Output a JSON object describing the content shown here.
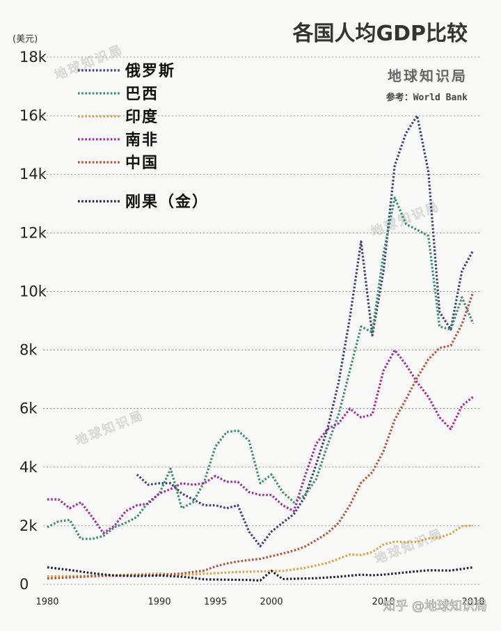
{
  "title": "各国人均GDP比较",
  "unit_label": "(美元)",
  "brand": "地球知识局",
  "source": "参考：World Bank",
  "watermark_text": "地球知识局",
  "zhihu_watermark": "知乎 @地球知识局",
  "chart_data": {
    "type": "line",
    "title": "各国人均GDP比较",
    "ylabel": "(美元)",
    "xlim": [
      1980,
      2018
    ],
    "ylim": [
      0,
      18000
    ],
    "y_ticks": [
      0,
      2000,
      4000,
      6000,
      8000,
      10000,
      12000,
      14000,
      16000,
      18000
    ],
    "y_tick_labels": [
      "0",
      "2k",
      "4k",
      "6k",
      "8k",
      "10k",
      "12k",
      "14k",
      "16k",
      "18k"
    ],
    "x_ticks": [
      1980,
      1990,
      1995,
      2000,
      2010,
      2018
    ],
    "x_tick_labels": [
      "1980",
      "1990",
      "1995",
      "2000",
      "2010",
      "2018"
    ],
    "grid": "horizontal",
    "line_style": "dotted",
    "legend_position": "top-left",
    "series": [
      {
        "name": "俄罗斯",
        "color": "#3b3f7a",
        "x": [
          1988,
          1989,
          1990,
          1991,
          1992,
          1993,
          1994,
          1995,
          1996,
          1997,
          1998,
          1999,
          2000,
          2001,
          2002,
          2003,
          2004,
          2005,
          2006,
          2007,
          2008,
          2009,
          2010,
          2011,
          2012,
          2013,
          2014,
          2015,
          2016,
          2017,
          2018
        ],
        "values": [
          3750,
          3400,
          3450,
          3450,
          3100,
          2900,
          2700,
          2700,
          2600,
          2700,
          1800,
          1300,
          1800,
          2100,
          2400,
          3000,
          4100,
          5300,
          6900,
          9100,
          11700,
          8500,
          10700,
          14300,
          15400,
          16000,
          14100,
          9300,
          8700,
          10700,
          11400
        ]
      },
      {
        "name": "巴西",
        "color": "#3a8f6a",
        "x": [
          1980,
          1981,
          1982,
          1983,
          1984,
          1985,
          1986,
          1987,
          1988,
          1989,
          1990,
          1991,
          1992,
          1993,
          1994,
          1995,
          1996,
          1997,
          1998,
          1999,
          2000,
          2001,
          2002,
          2003,
          2004,
          2005,
          2006,
          2007,
          2008,
          2009,
          2010,
          2011,
          2012,
          2013,
          2014,
          2015,
          2016,
          2017,
          2018
        ],
        "values": [
          1950,
          2150,
          2200,
          1550,
          1550,
          1650,
          1950,
          2100,
          2300,
          2800,
          3100,
          3950,
          2600,
          2800,
          3500,
          4700,
          5200,
          5250,
          4900,
          3450,
          3750,
          3150,
          2800,
          3050,
          3600,
          4750,
          5800,
          7300,
          8800,
          8600,
          11300,
          13200,
          12300,
          12100,
          11900,
          8800,
          8700,
          9800,
          8900
        ]
      },
      {
        "name": "印度",
        "color": "#d6a545",
        "x": [
          1980,
          1985,
          1990,
          1992,
          1995,
          1997,
          1999,
          2001,
          2003,
          2005,
          2007,
          2008,
          2009,
          2010,
          2011,
          2012,
          2013,
          2014,
          2015,
          2016,
          2017,
          2018
        ],
        "values": [
          270,
          300,
          370,
          320,
          380,
          420,
          440,
          460,
          560,
          730,
          1020,
          1000,
          1100,
          1360,
          1460,
          1440,
          1450,
          1570,
          1600,
          1730,
          1980,
          2010
        ]
      },
      {
        "name": "南非",
        "color": "#a52a9c",
        "x": [
          1980,
          1981,
          1982,
          1983,
          1984,
          1985,
          1986,
          1987,
          1988,
          1989,
          1990,
          1991,
          1992,
          1993,
          1994,
          1995,
          1996,
          1997,
          1998,
          1999,
          2000,
          2001,
          2002,
          2003,
          2004,
          2005,
          2006,
          2007,
          2008,
          2009,
          2010,
          2011,
          2012,
          2013,
          2014,
          2015,
          2016,
          2017,
          2018
        ],
        "values": [
          2900,
          2900,
          2600,
          2800,
          2300,
          1750,
          2000,
          2500,
          2700,
          2750,
          3100,
          3250,
          3450,
          3400,
          3450,
          3700,
          3500,
          3500,
          3150,
          3050,
          3050,
          2700,
          2500,
          3700,
          4800,
          5300,
          5500,
          6000,
          5700,
          5800,
          7300,
          8000,
          7500,
          6900,
          6400,
          5700,
          5300,
          6100,
          6400
        ]
      },
      {
        "name": "中国",
        "color": "#b5543c",
        "x": [
          1980,
          1985,
          1990,
          1992,
          1994,
          1995,
          1996,
          1997,
          1998,
          1999,
          2000,
          2001,
          2002,
          2003,
          2004,
          2005,
          2006,
          2007,
          2008,
          2009,
          2010,
          2011,
          2012,
          2013,
          2014,
          2015,
          2016,
          2017,
          2018
        ],
        "values": [
          200,
          290,
          320,
          370,
          470,
          610,
          710,
          780,
          830,
          870,
          960,
          1050,
          1150,
          1290,
          1510,
          1750,
          2100,
          2700,
          3470,
          3830,
          4550,
          5620,
          6320,
          7050,
          7680,
          8070,
          8150,
          8880,
          9980
        ]
      },
      {
        "name": "刚果（金）",
        "color": "#1e2238",
        "x": [
          1980,
          1982,
          1984,
          1986,
          1988,
          1990,
          1992,
          1993,
          1994,
          1996,
          1998,
          1999,
          2000,
          2001,
          2002,
          2004,
          2006,
          2008,
          2009,
          2010,
          2012,
          2014,
          2016,
          2018
        ],
        "values": [
          580,
          490,
          380,
          300,
          280,
          300,
          260,
          220,
          170,
          160,
          150,
          130,
          460,
          180,
          190,
          210,
          260,
          330,
          310,
          330,
          410,
          480,
          470,
          580
        ]
      }
    ]
  }
}
